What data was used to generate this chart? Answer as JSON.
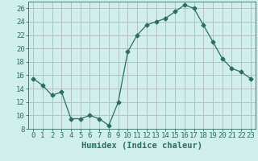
{
  "x": [
    0,
    1,
    2,
    3,
    4,
    5,
    6,
    7,
    8,
    9,
    10,
    11,
    12,
    13,
    14,
    15,
    16,
    17,
    18,
    19,
    20,
    21,
    22,
    23
  ],
  "y": [
    15.5,
    14.5,
    13.0,
    13.5,
    9.5,
    9.5,
    10.0,
    9.5,
    8.5,
    12.0,
    19.5,
    22.0,
    23.5,
    24.0,
    24.5,
    25.5,
    26.5,
    26.0,
    23.5,
    21.0,
    18.5,
    17.0,
    16.5,
    15.5
  ],
  "line_color": "#2d6e5e",
  "marker": "D",
  "marker_size": 2.5,
  "bg_color": "#d0eeea",
  "grid_color": "#b0b8c8",
  "xlabel": "Humidex (Indice chaleur)",
  "xlim": [
    -0.5,
    23.5
  ],
  "ylim": [
    8,
    27
  ],
  "yticks": [
    8,
    10,
    12,
    14,
    16,
    18,
    20,
    22,
    24,
    26
  ],
  "xticks": [
    0,
    1,
    2,
    3,
    4,
    5,
    6,
    7,
    8,
    9,
    10,
    11,
    12,
    13,
    14,
    15,
    16,
    17,
    18,
    19,
    20,
    21,
    22,
    23
  ],
  "xlabel_fontsize": 7.5,
  "tick_fontsize": 6.5
}
